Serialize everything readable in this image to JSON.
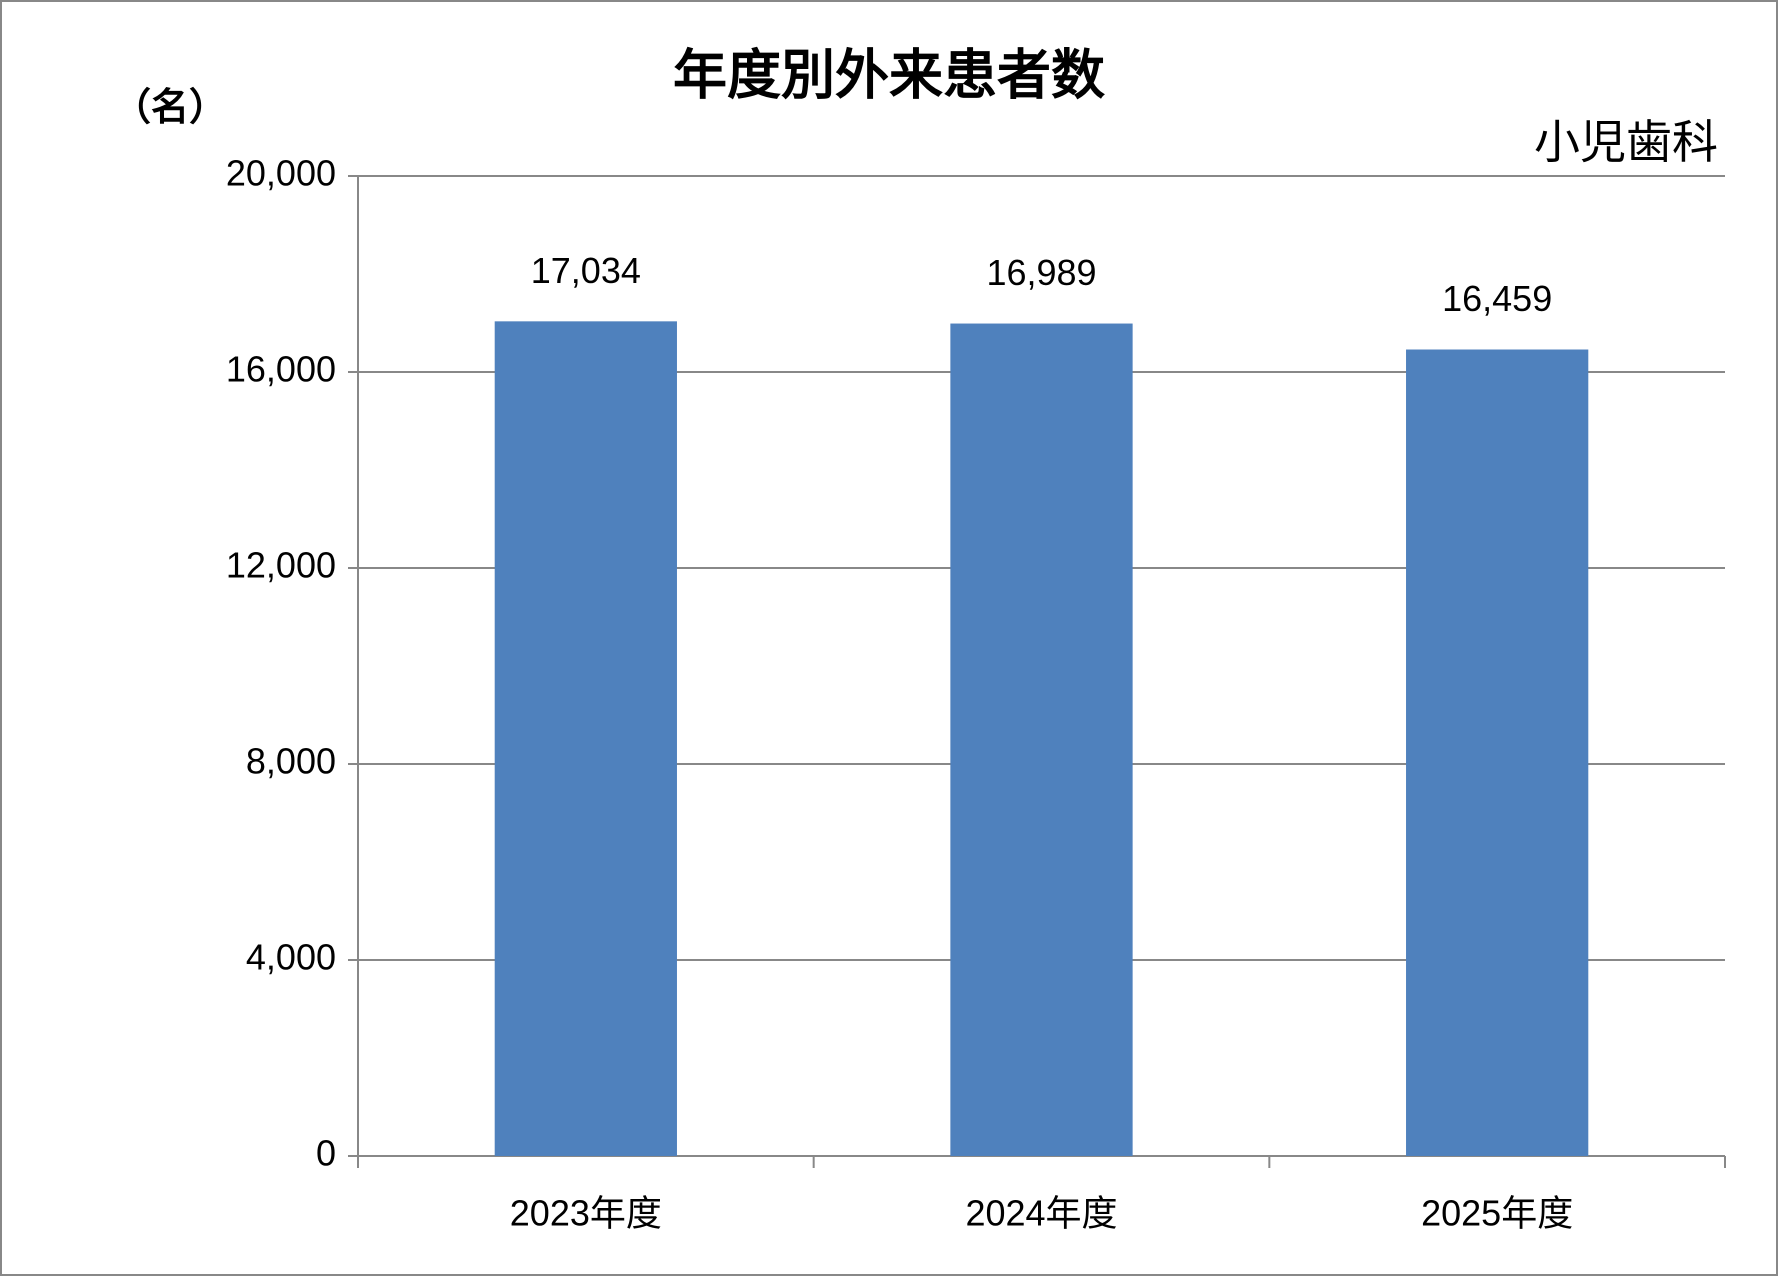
{
  "chart_data": {
    "type": "bar",
    "title": "年度別外来患者数",
    "subtitle": "小児歯科",
    "y_label": "（名）",
    "categories": [
      "2023年度",
      "2024年度",
      "2025年度"
    ],
    "values": [
      17034,
      16989,
      16459
    ],
    "value_labels": [
      "17,034",
      "16,989",
      "16,459"
    ],
    "color": "#4f81bd",
    "ylim": [
      0,
      20000
    ],
    "yticks": [
      0,
      {
        "value": 4000,
        "label": "4,000"
      },
      {
        "value": 8000,
        "label": "8,000"
      },
      {
        "value": 12000,
        "label": "12,000"
      },
      {
        "value": 16000,
        "label": "16,000"
      },
      {
        "value": 20000,
        "label": "20,000"
      }
    ],
    "grid": true
  }
}
